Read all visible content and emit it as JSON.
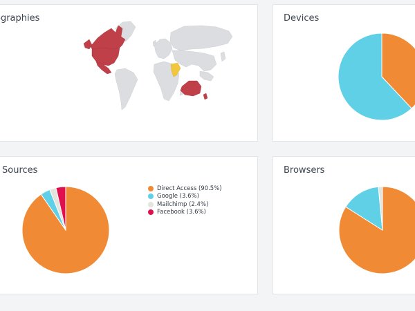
{
  "geographies": {
    "title": "eographies",
    "colors": {
      "land": "#dcdde0",
      "highlight": "#c0404a",
      "accent": "#f2c63e"
    }
  },
  "devices": {
    "title": "Devices"
  },
  "traffic_sources": {
    "title": "Sources",
    "legend": [
      {
        "label": "Direct Access (90.5%)",
        "color": "#f08a34"
      },
      {
        "label": "Google (3.6%)",
        "color": "#5fd0e6"
      },
      {
        "label": "Mailchimp (2.4%)",
        "color": "#e4e4dc"
      },
      {
        "label": "Facebook (3.6%)",
        "color": "#e0104f"
      }
    ]
  },
  "browsers": {
    "title": "Browsers"
  },
  "chart_data": [
    {
      "type": "pie",
      "title": "Devices",
      "categories": [
        "",
        ""
      ],
      "values": [
        38,
        62
      ],
      "colors": [
        "#f08a34",
        "#5fd0e6"
      ]
    },
    {
      "type": "pie",
      "title": "Sources",
      "categories": [
        "Direct Access",
        "Google",
        "Mailchimp",
        "Facebook"
      ],
      "values": [
        90.5,
        3.6,
        2.4,
        3.6
      ],
      "colors": [
        "#f08a34",
        "#5fd0e6",
        "#e4e4dc",
        "#e0104f"
      ]
    },
    {
      "type": "pie",
      "title": "Browsers",
      "categories": [
        "",
        "",
        ""
      ],
      "values": [
        84,
        14.5,
        1.5
      ],
      "colors": [
        "#f08a34",
        "#5fd0e6",
        "#e4e4dc"
      ]
    }
  ]
}
